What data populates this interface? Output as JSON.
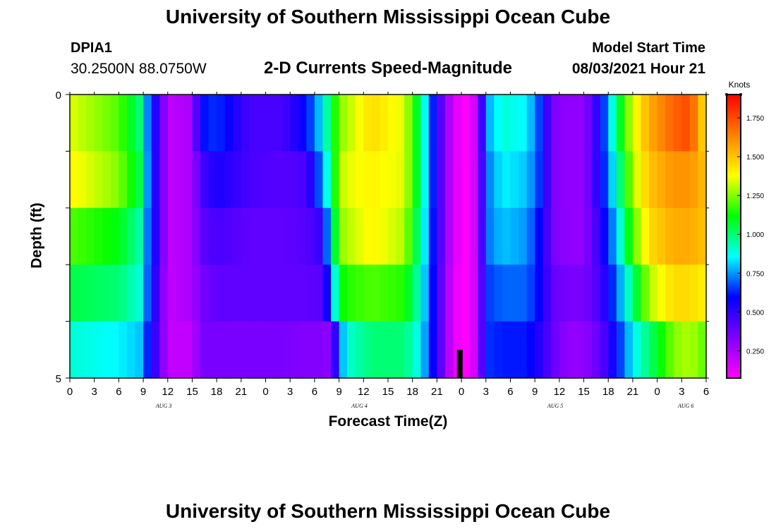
{
  "header": {
    "title": "University of Southern Mississippi Ocean Cube",
    "station": "DPIA1",
    "coords": "30.2500N  88.0750W",
    "subtitle": "2-D Currents Speed-Magnitude",
    "model_start_label": "Model Start Time",
    "model_start_time": "08/03/2021 Hour 21"
  },
  "footer": {
    "title": "University of Southern Mississippi Ocean Cube"
  },
  "colors": {
    "rainbow": [
      "#ff00ff",
      "#8000ff",
      "#0000ff",
      "#00ffff",
      "#00ff00",
      "#ffff00",
      "#ff8000",
      "#ff0000"
    ]
  },
  "chart_data": {
    "type": "heatmap",
    "title": "2-D Currents Speed-Magnitude",
    "xlabel": "Forecast Time(Z)",
    "ylabel": "Depth (ft)",
    "x_ticks": [
      "0",
      "3",
      "6",
      "9",
      "12",
      "15",
      "18",
      "21",
      "0",
      "3",
      "6",
      "9",
      "12",
      "15",
      "18",
      "21",
      "0",
      "3",
      "6",
      "9",
      "12",
      "15",
      "18",
      "21",
      "0",
      "3",
      "6"
    ],
    "x_hours": [
      0,
      3,
      6,
      9,
      12,
      15,
      18,
      21,
      24,
      27,
      30,
      33,
      36,
      39,
      42,
      45,
      48,
      51,
      54,
      57,
      60,
      63,
      66,
      69,
      72,
      75,
      78
    ],
    "day_labels": [
      {
        "text": "AUG  3",
        "hour": 11.5
      },
      {
        "text": "AUG  4",
        "hour": 35.5
      },
      {
        "text": "AUG  5",
        "hour": 59.5
      },
      {
        "text": "AUG  6",
        "hour": 75.5
      }
    ],
    "y_ticks": [
      "0",
      "5"
    ],
    "ylim": [
      0,
      5
    ],
    "xlim": [
      0,
      78
    ],
    "colorbar": {
      "label": "Knots",
      "ticks": [
        "0.250",
        "0.500",
        "0.750",
        "1.000",
        "1.250",
        "1.500",
        "1.750"
      ],
      "tick_values": [
        0.25,
        0.5,
        0.75,
        1.0,
        1.25,
        1.5,
        1.75
      ],
      "range": [
        0.075,
        1.9
      ]
    },
    "depth_layers_ft": [
      0.5,
      1.5,
      2.5,
      3.5,
      4.5
    ],
    "time_keyframes": [
      {
        "t": 0,
        "v": [
          1.35,
          1.4,
          1.2,
          1.05,
          0.9
        ]
      },
      {
        "t": 6,
        "v": [
          1.2,
          1.25,
          1.1,
          1.0,
          0.85
        ]
      },
      {
        "t": 8.5,
        "v": [
          1.0,
          1.05,
          0.95,
          0.9,
          0.8
        ]
      },
      {
        "t": 10,
        "v": [
          0.6,
          0.6,
          0.6,
          0.6,
          0.55
        ]
      },
      {
        "t": 11,
        "v": [
          0.45,
          0.45,
          0.45,
          0.4,
          0.4
        ]
      },
      {
        "t": 12,
        "v": [
          0.2,
          0.2,
          0.2,
          0.2,
          0.2
        ]
      },
      {
        "t": 15,
        "v": [
          0.25,
          0.25,
          0.25,
          0.25,
          0.2
        ]
      },
      {
        "t": 16,
        "v": [
          0.6,
          0.45,
          0.4,
          0.35,
          0.35
        ]
      },
      {
        "t": 18,
        "v": [
          0.65,
          0.55,
          0.45,
          0.4,
          0.35
        ]
      },
      {
        "t": 22,
        "v": [
          0.45,
          0.45,
          0.4,
          0.4,
          0.35
        ]
      },
      {
        "t": 26,
        "v": [
          0.45,
          0.42,
          0.4,
          0.4,
          0.35
        ]
      },
      {
        "t": 29,
        "v": [
          0.6,
          0.45,
          0.42,
          0.4,
          0.33
        ]
      },
      {
        "t": 31,
        "v": [
          0.85,
          0.75,
          0.5,
          0.42,
          0.33
        ]
      },
      {
        "t": 32,
        "v": [
          1.05,
          1.0,
          0.9,
          0.7,
          0.3
        ]
      },
      {
        "t": 33,
        "v": [
          1.25,
          1.3,
          1.25,
          1.1,
          0.7
        ]
      },
      {
        "t": 34,
        "v": [
          1.3,
          1.35,
          1.3,
          1.15,
          0.9
        ]
      },
      {
        "t": 37,
        "v": [
          1.45,
          1.4,
          1.4,
          1.2,
          1.0
        ]
      },
      {
        "t": 41,
        "v": [
          1.35,
          1.35,
          1.3,
          1.15,
          1.0
        ]
      },
      {
        "t": 43,
        "v": [
          1.0,
          1.0,
          0.95,
          0.9,
          0.85
        ]
      },
      {
        "t": 45,
        "v": [
          0.5,
          0.5,
          0.5,
          0.5,
          0.5
        ]
      },
      {
        "t": 47,
        "v": [
          0.15,
          0.15,
          0.15,
          0.12,
          0.12
        ]
      },
      {
        "t": 48.5,
        "v": [
          0.08,
          0.08,
          0.08,
          0.08,
          0.08
        ]
      },
      {
        "t": 50,
        "v": [
          0.2,
          0.2,
          0.2,
          0.2,
          0.2
        ]
      },
      {
        "t": 51,
        "v": [
          0.75,
          0.7,
          0.7,
          0.65,
          0.65
        ]
      },
      {
        "t": 53,
        "v": [
          0.9,
          0.85,
          0.8,
          0.7,
          0.62
        ]
      },
      {
        "t": 56,
        "v": [
          0.85,
          0.8,
          0.75,
          0.7,
          0.62
        ]
      },
      {
        "t": 58,
        "v": [
          0.6,
          0.6,
          0.55,
          0.55,
          0.5
        ]
      },
      {
        "t": 59,
        "v": [
          0.35,
          0.35,
          0.35,
          0.4,
          0.4
        ]
      },
      {
        "t": 61,
        "v": [
          0.3,
          0.3,
          0.3,
          0.35,
          0.3
        ]
      },
      {
        "t": 63,
        "v": [
          0.3,
          0.3,
          0.3,
          0.35,
          0.3
        ]
      },
      {
        "t": 65,
        "v": [
          0.55,
          0.55,
          0.5,
          0.45,
          0.4
        ]
      },
      {
        "t": 67,
        "v": [
          1.0,
          0.9,
          0.8,
          0.7,
          0.6
        ]
      },
      {
        "t": 69,
        "v": [
          1.35,
          1.3,
          1.2,
          1.0,
          0.85
        ]
      },
      {
        "t": 71,
        "v": [
          1.55,
          1.5,
          1.45,
          1.3,
          1.0
        ]
      },
      {
        "t": 74,
        "v": [
          1.7,
          1.6,
          1.55,
          1.45,
          1.25
        ]
      },
      {
        "t": 76,
        "v": [
          1.75,
          1.6,
          1.55,
          1.45,
          1.3
        ]
      },
      {
        "t": 78,
        "v": [
          1.4,
          1.5,
          1.5,
          1.4,
          1.2
        ]
      }
    ],
    "marker": {
      "hour": 47.5,
      "depth_from": 4.5,
      "depth_to": 5
    }
  }
}
